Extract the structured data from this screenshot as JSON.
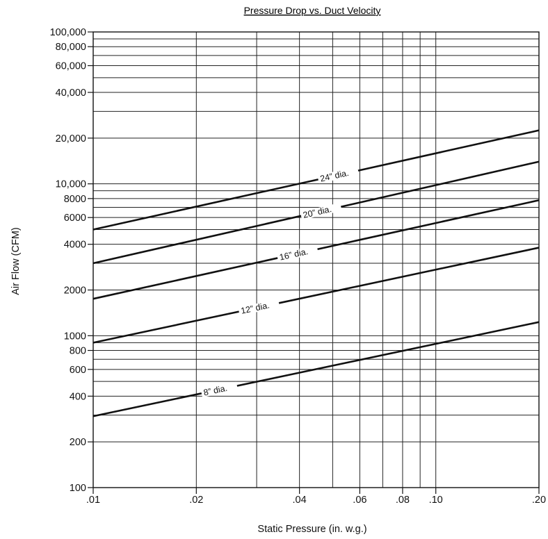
{
  "chart_data": {
    "type": "line",
    "title": "Pressure Drop vs. Duct Velocity",
    "xlabel": "Static Pressure (in. w.g.)",
    "ylabel": "Air Flow (CFM)",
    "x_scale": "log",
    "y_scale": "log",
    "xlim": [
      0.01,
      0.2
    ],
    "ylim": [
      100,
      100000
    ],
    "grid": true,
    "x_ticks": [
      {
        "value": 0.01,
        "label": ".01"
      },
      {
        "value": 0.02,
        "label": ".02"
      },
      {
        "value": 0.04,
        "label": ".04"
      },
      {
        "value": 0.06,
        "label": ".06"
      },
      {
        "value": 0.08,
        "label": ".08"
      },
      {
        "value": 0.1,
        "label": ".10"
      },
      {
        "value": 0.2,
        "label": ".20"
      }
    ],
    "x_gridlines": [
      0.01,
      0.02,
      0.03,
      0.04,
      0.05,
      0.06,
      0.07,
      0.08,
      0.09,
      0.1,
      0.2
    ],
    "y_ticks": [
      {
        "value": 100,
        "label": "100"
      },
      {
        "value": 200,
        "label": "200"
      },
      {
        "value": 400,
        "label": "400"
      },
      {
        "value": 600,
        "label": "600"
      },
      {
        "value": 800,
        "label": "800"
      },
      {
        "value": 1000,
        "label": "1000"
      },
      {
        "value": 2000,
        "label": "2000"
      },
      {
        "value": 4000,
        "label": "4000"
      },
      {
        "value": 6000,
        "label": "6000"
      },
      {
        "value": 8000,
        "label": "8000"
      },
      {
        "value": 10000,
        "label": "10,000"
      },
      {
        "value": 20000,
        "label": "20,000"
      },
      {
        "value": 40000,
        "label": "40,000"
      },
      {
        "value": 60000,
        "label": "60,000"
      },
      {
        "value": 80000,
        "label": "80,000"
      },
      {
        "value": 100000,
        "label": "100,000"
      }
    ],
    "y_gridlines": [
      100,
      200,
      300,
      400,
      500,
      600,
      700,
      800,
      900,
      1000,
      2000,
      3000,
      4000,
      5000,
      6000,
      7000,
      8000,
      9000,
      10000,
      20000,
      30000,
      40000,
      50000,
      60000,
      70000,
      80000,
      90000,
      100000
    ],
    "series": [
      {
        "name": "8” dia.",
        "x": [
          0.01,
          0.2
        ],
        "y": [
          295,
          1230
        ],
        "label_at": 0.021
      },
      {
        "name": "12” dia.",
        "x": [
          0.01,
          0.2
        ],
        "y": [
          900,
          3800
        ],
        "label_at": 0.027
      },
      {
        "name": "16” dia.",
        "x": [
          0.01,
          0.2
        ],
        "y": [
          1750,
          7800
        ],
        "label_at": 0.035
      },
      {
        "name": "20” dia.",
        "x": [
          0.01,
          0.2
        ],
        "y": [
          3000,
          14000
        ],
        "label_at": 0.041
      },
      {
        "name": "24” dia.",
        "x": [
          0.01,
          0.2
        ],
        "y": [
          5000,
          22500
        ],
        "label_at": 0.046
      }
    ]
  }
}
